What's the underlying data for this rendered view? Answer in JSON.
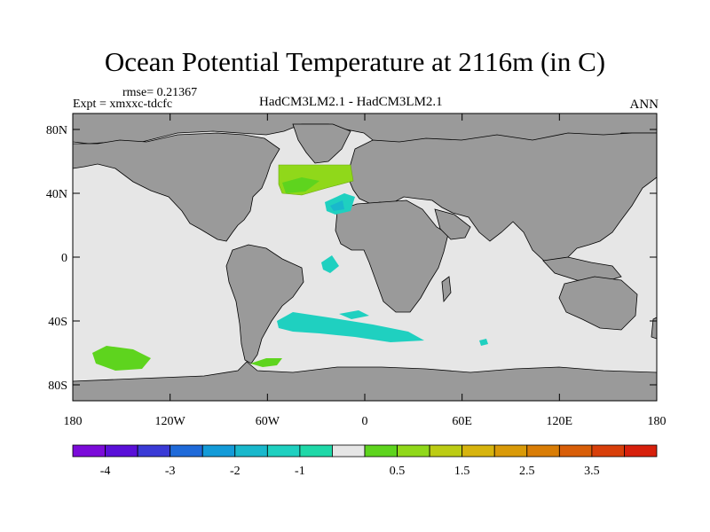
{
  "title": "Ocean Potential Temperature at 2116m (in C)",
  "rmse_label": "rmse= 0.21367",
  "expt_label": "Expt = xmxxc-tdcfc",
  "models_label": "HadCM3LM2.1 - HadCM3LM2.1",
  "season_label": "ANN",
  "y_axis": {
    "ticks": [
      {
        "label": "80N",
        "lat": 80
      },
      {
        "label": "40N",
        "lat": 40
      },
      {
        "label": "0",
        "lat": 0
      },
      {
        "label": "40S",
        "lat": -40
      },
      {
        "label": "80S",
        "lat": -80
      }
    ]
  },
  "x_axis": {
    "ticks": [
      {
        "label": "180",
        "lon": -180
      },
      {
        "label": "120W",
        "lon": -120
      },
      {
        "label": "60W",
        "lon": -60
      },
      {
        "label": "0",
        "lon": 0
      },
      {
        "label": "60E",
        "lon": 60
      },
      {
        "label": "120E",
        "lon": 120
      },
      {
        "label": "180",
        "lon": 180
      }
    ]
  },
  "colorbar": {
    "colors": [
      "#7b0bd9",
      "#5a10d8",
      "#3a3ad6",
      "#1f6ad9",
      "#139bd8",
      "#19b8cc",
      "#1fd0c0",
      "#1fd8a8",
      "#e6e6e6",
      "#5ed41e",
      "#90d81a",
      "#bccc14",
      "#d7b40e",
      "#d99a08",
      "#d97d06",
      "#d85e08",
      "#d83f0a",
      "#d7200c"
    ],
    "labels": [
      "-4",
      "-3",
      "-2",
      "-1",
      "0.5",
      "1.5",
      "2.5",
      "3.5"
    ]
  },
  "colors": {
    "ocean": "#e6e6e6",
    "land": "#9a9a9a",
    "coast": "#000000"
  }
}
